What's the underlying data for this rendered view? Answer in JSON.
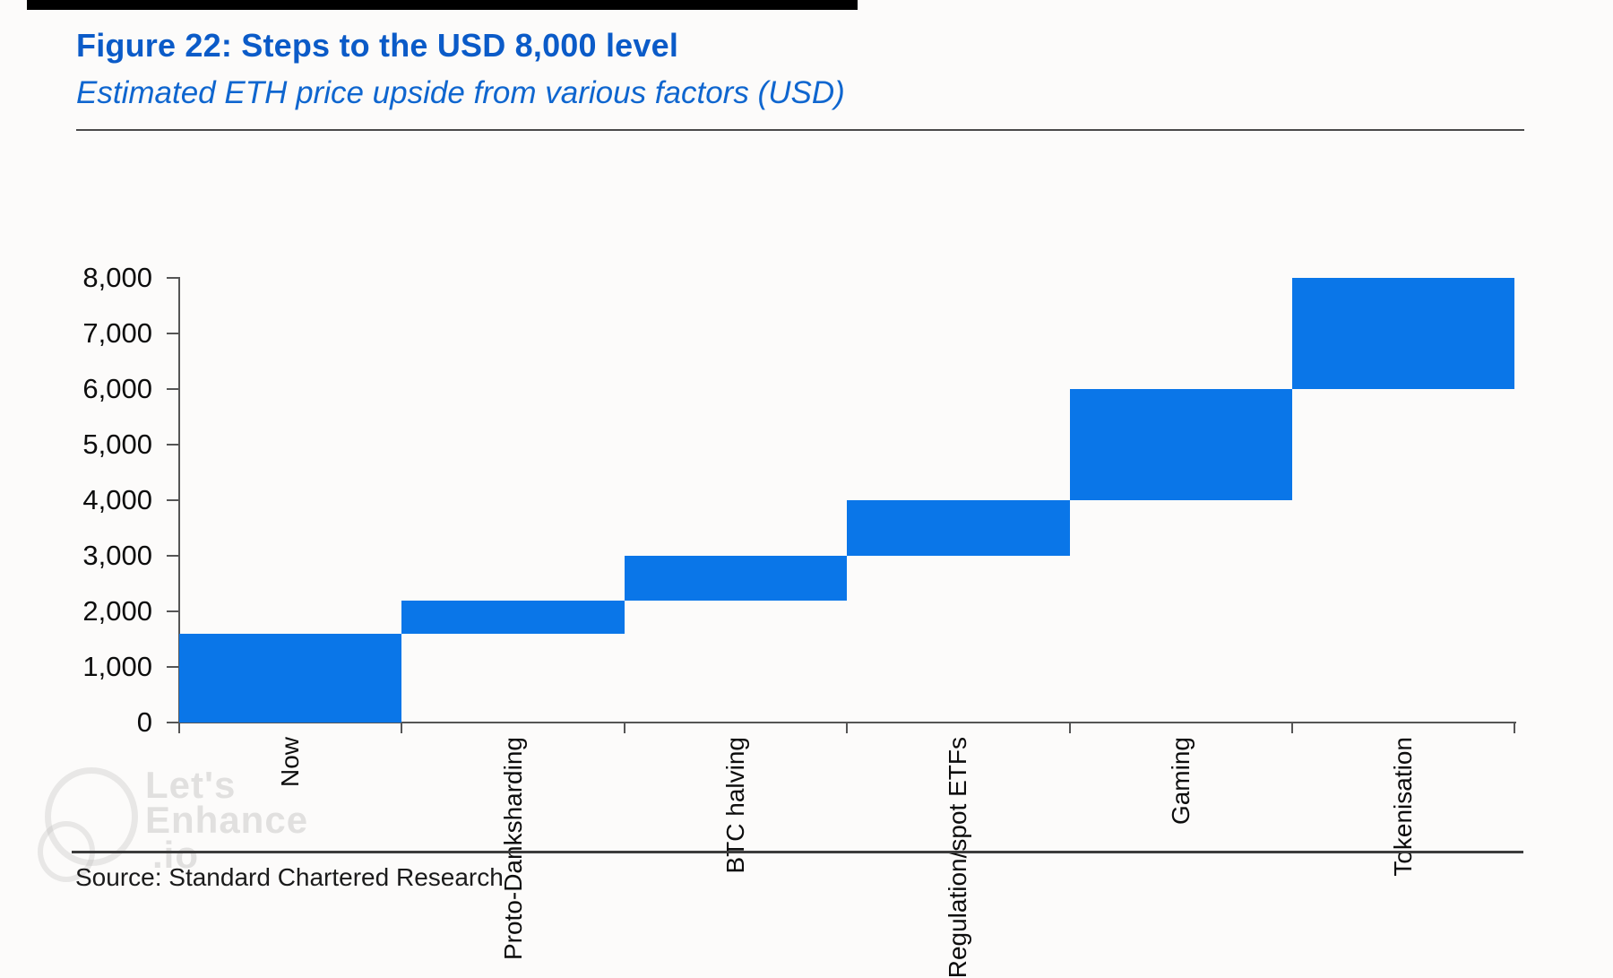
{
  "page": {
    "title": "Figure 22: Steps to the USD 8,000 level",
    "subtitle": "Estimated ETH price upside from various factors (USD)",
    "source": "Source: Standard Chartered Research"
  },
  "watermark": {
    "lines": [
      "Let's",
      "Enhance",
      ".io"
    ]
  },
  "colors": {
    "bar_blue": "#0a76e8",
    "title_blue": "#0b5bc8",
    "subtitle_blue": "#0f66cf",
    "axis_gray": "#555555",
    "source_text": "#1b1b1b"
  },
  "chart_data": {
    "type": "bar",
    "subtype": "waterfall-steps",
    "title": "Figure 22: Steps to the USD 8,000 level",
    "subtitle": "Estimated ETH price upside from various factors (USD)",
    "categories": [
      "Now",
      "Proto-Danksharding",
      "BTC halving",
      "Regulation/spot ETFs",
      "Gaming",
      "Tokenisation"
    ],
    "segments": [
      {
        "label": "Now",
        "from": 0,
        "to": 1600,
        "delta": 1600
      },
      {
        "label": "Proto-Danksharding",
        "from": 1600,
        "to": 2200,
        "delta": 600
      },
      {
        "label": "BTC halving",
        "from": 2200,
        "to": 3000,
        "delta": 800
      },
      {
        "label": "Regulation/spot ETFs",
        "from": 3000,
        "to": 4000,
        "delta": 1000
      },
      {
        "label": "Gaming",
        "from": 4000,
        "to": 6000,
        "delta": 2000
      },
      {
        "label": "Tokenisation",
        "from": 6000,
        "to": 8000,
        "delta": 2000
      }
    ],
    "cumulative_values": [
      1600,
      2200,
      3000,
      4000,
      6000,
      8000
    ],
    "ylim": [
      0,
      8000
    ],
    "y_ticks": [
      0,
      1000,
      2000,
      3000,
      4000,
      5000,
      6000,
      7000,
      8000
    ],
    "y_tick_labels": [
      "0",
      "1,000",
      "2,000",
      "3,000",
      "4,000",
      "5,000",
      "6,000",
      "7,000",
      "8,000"
    ],
    "bar_color": "#0a76e8",
    "bar_gap": 0,
    "grid": false,
    "legend": false,
    "x_label_rotation": -90
  }
}
